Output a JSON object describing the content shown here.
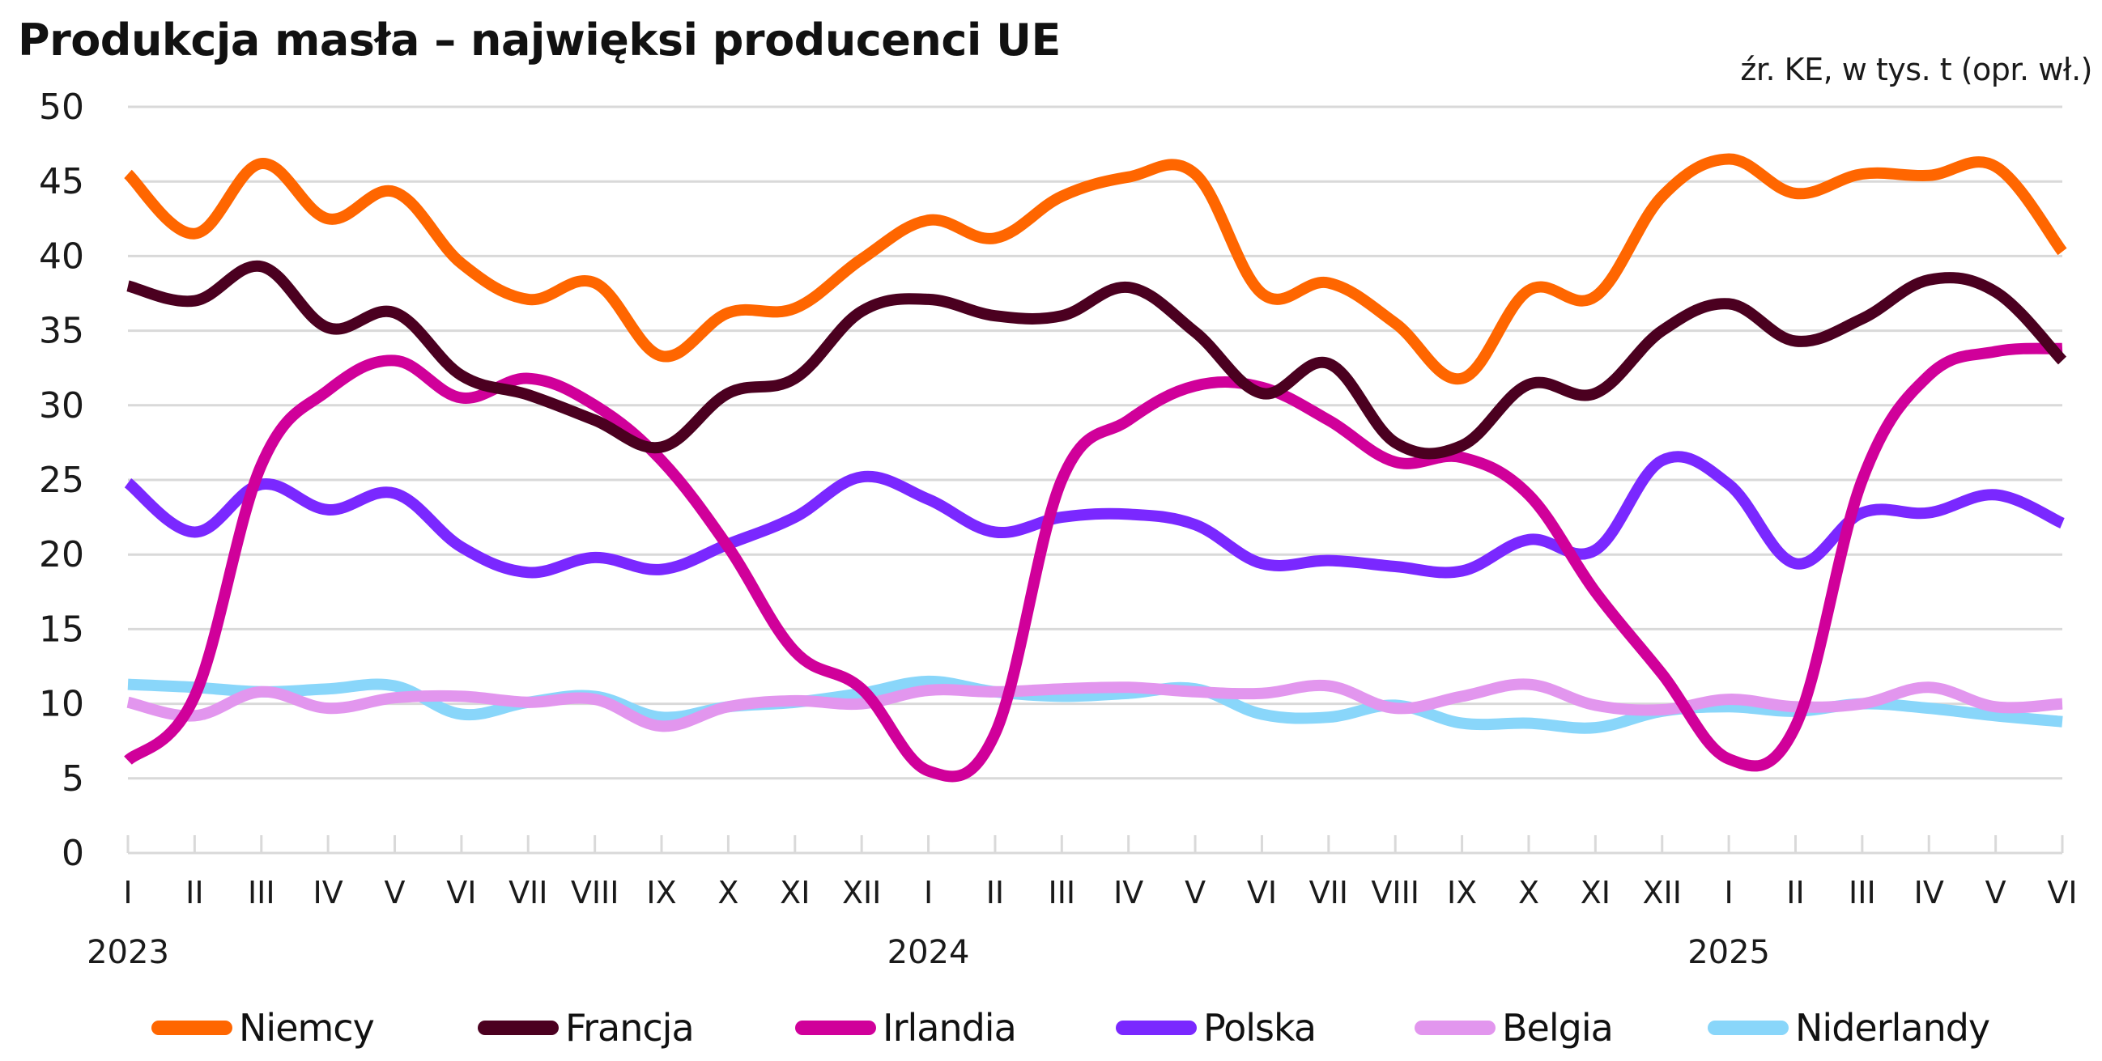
{
  "chart_data": {
    "type": "line",
    "title": "Produkcja masła – najwięksi producenci UE",
    "subtitle": "źr. KE, w tys. t (opr. wł.)",
    "xlabel": "",
    "ylabel": "",
    "ylim": [
      0,
      50
    ],
    "yticks": [
      0,
      5,
      10,
      15,
      20,
      25,
      30,
      35,
      40,
      45,
      50
    ],
    "grid": true,
    "legend_position": "bottom",
    "categories": [
      "I",
      "II",
      "III",
      "IV",
      "V",
      "VI",
      "VII",
      "VIII",
      "IX",
      "X",
      "XI",
      "XII",
      "I",
      "II",
      "III",
      "IV",
      "V",
      "VI",
      "VII",
      "VIII",
      "IX",
      "X",
      "XI",
      "XII",
      "I",
      "II",
      "III",
      "IV",
      "V",
      "VI"
    ],
    "year_labels": [
      {
        "index": 0,
        "label": "2023"
      },
      {
        "index": 12,
        "label": "2024"
      },
      {
        "index": 24,
        "label": "2025"
      }
    ],
    "series": [
      {
        "name": "Niemcy",
        "color": "#FF6600",
        "values": [
          45.5,
          41.5,
          46.2,
          42.5,
          44.3,
          39.5,
          37.1,
          38.2,
          33.3,
          36.2,
          36.5,
          39.8,
          42.4,
          41.2,
          44.0,
          45.3,
          45.5,
          37.5,
          38.2,
          35.5,
          31.8,
          37.7,
          37.3,
          44.0,
          46.5,
          44.2,
          45.5,
          45.4,
          46.0,
          40.3
        ]
      },
      {
        "name": "Francja",
        "color": "#4B0020",
        "values": [
          38.0,
          37.0,
          39.3,
          35.2,
          36.2,
          32.0,
          30.7,
          29.0,
          27.2,
          30.8,
          31.8,
          36.3,
          37.1,
          36.0,
          36.0,
          37.9,
          34.9,
          30.8,
          32.8,
          27.5,
          27.3,
          31.4,
          30.8,
          35.0,
          36.8,
          34.3,
          35.8,
          38.4,
          37.6,
          33.0
        ]
      },
      {
        "name": "Irlandia",
        "color": "#D0009A",
        "values": [
          6.2,
          10.5,
          26.0,
          31.0,
          33.0,
          30.5,
          31.8,
          30.0,
          26.3,
          20.5,
          13.5,
          11.0,
          5.5,
          8.0,
          25.0,
          29.0,
          31.3,
          31.2,
          29.0,
          26.2,
          26.5,
          24.0,
          17.5,
          12.0,
          6.3,
          8.5,
          25.0,
          32.0,
          33.6,
          33.8
        ]
      },
      {
        "name": "Polska",
        "color": "#7A28FF",
        "values": [
          24.8,
          21.5,
          24.7,
          23.0,
          24.1,
          20.5,
          18.8,
          19.8,
          19.0,
          20.7,
          22.5,
          25.2,
          23.7,
          21.5,
          22.5,
          22.7,
          22.0,
          19.4,
          19.6,
          19.2,
          18.9,
          21.0,
          20.3,
          26.3,
          24.7,
          19.4,
          22.8,
          22.8,
          24.0,
          22.1
        ]
      },
      {
        "name": "Belgia",
        "color": "#E296EE",
        "values": [
          10.1,
          9.2,
          10.8,
          9.7,
          10.4,
          10.5,
          10.1,
          10.3,
          8.5,
          9.8,
          10.2,
          10.0,
          10.9,
          10.8,
          11.0,
          11.1,
          10.8,
          10.7,
          11.2,
          9.7,
          10.5,
          11.3,
          9.9,
          9.6,
          10.3,
          9.8,
          10.0,
          11.1,
          9.8,
          10.0
        ]
      },
      {
        "name": "Niderlandy",
        "color": "#89D6FA",
        "values": [
          11.3,
          11.1,
          10.8,
          11.0,
          11.2,
          9.3,
          10.1,
          10.5,
          9.1,
          9.8,
          10.1,
          10.7,
          11.5,
          10.8,
          10.5,
          10.7,
          11.0,
          9.3,
          9.1,
          9.9,
          8.7,
          8.7,
          8.4,
          9.5,
          9.8,
          9.5,
          10.0,
          9.7,
          9.2,
          8.8
        ]
      }
    ]
  },
  "colors": {
    "grid": "#D9D9D9",
    "axis": "#D9D9D9",
    "text": "#1A1A1A"
  }
}
